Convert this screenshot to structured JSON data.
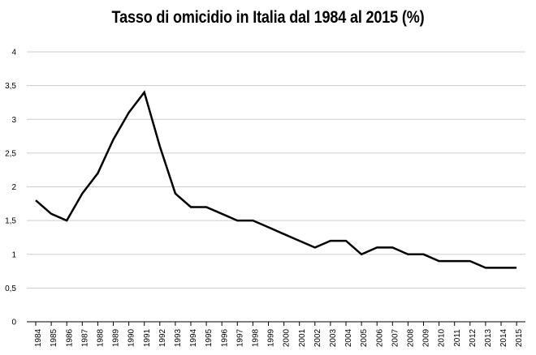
{
  "chart_data": {
    "type": "line",
    "title": "Tasso di omicidio in Italia dal 1984 al 2015 (%)",
    "xlabel": "",
    "ylabel": "",
    "categories": [
      "1984",
      "1985",
      "1986",
      "1987",
      "1988",
      "1989",
      "1990",
      "1991",
      "1992",
      "1993",
      "1994",
      "1995",
      "1996",
      "1997",
      "1998",
      "1999",
      "2000",
      "2001",
      "2002",
      "2003",
      "2004",
      "2005",
      "2006",
      "2007",
      "2008",
      "2009",
      "2010",
      "2011",
      "2012",
      "2013",
      "2014",
      "2015"
    ],
    "series": [
      {
        "values": [
          1.8,
          1.6,
          1.5,
          1.9,
          2.2,
          2.7,
          3.1,
          3.4,
          2.6,
          1.9,
          1.7,
          1.7,
          1.6,
          1.5,
          1.5,
          1.4,
          1.3,
          1.2,
          1.1,
          1.2,
          1.2,
          1.0,
          1.1,
          1.1,
          1.0,
          1.0,
          0.9,
          0.9,
          0.9,
          0.8,
          0.8,
          0.8
        ],
        "color": "#000000"
      }
    ],
    "ylim": [
      0,
      4
    ],
    "yticks": [
      "0",
      "0,5",
      "1",
      "1,5",
      "2",
      "2,5",
      "3",
      "3,5",
      "4"
    ],
    "ytick_values": [
      0,
      0.5,
      1,
      1.5,
      2,
      2.5,
      3,
      3.5,
      4
    ],
    "grid": true,
    "gridline_color": "#cccccc",
    "legend": "none"
  }
}
